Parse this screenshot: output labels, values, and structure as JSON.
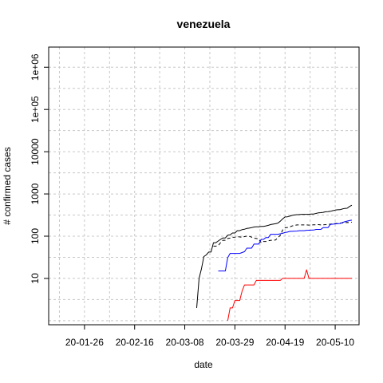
{
  "chart_data": {
    "type": "line",
    "title": "venezuela",
    "xlabel": "date",
    "ylabel": "# confirmed cases",
    "x_scale": "date",
    "x_range": [
      "2020-01-11",
      "2020-05-20"
    ],
    "x_ticks": [
      {
        "date": "2020-01-26",
        "label": "20-01-26"
      },
      {
        "date": "2020-02-16",
        "label": "20-02-16"
      },
      {
        "date": "2020-03-08",
        "label": "20-03-08"
      },
      {
        "date": "2020-03-29",
        "label": "20-03-29"
      },
      {
        "date": "2020-04-19",
        "label": "20-04-19"
      },
      {
        "date": "2020-05-10",
        "label": "20-05-10"
      }
    ],
    "y_scale": "log",
    "y_range": [
      0.8,
      3000000
    ],
    "y_ticks": [
      {
        "value": 10,
        "label": "10"
      },
      {
        "value": 100,
        "label": "100"
      },
      {
        "value": 1000,
        "label": "1000"
      },
      {
        "value": 10000,
        "label": "10000"
      },
      {
        "value": 100000,
        "label": "1e+05"
      },
      {
        "value": 1000000,
        "label": "1e+06"
      }
    ],
    "grid": true,
    "series": [
      {
        "color": "#000000",
        "dash": "solid",
        "points": [
          [
            "2020-03-13",
            2
          ],
          [
            "2020-03-14",
            10
          ],
          [
            "2020-03-15",
            17
          ],
          [
            "2020-03-16",
            33
          ],
          [
            "2020-03-17",
            36
          ],
          [
            "2020-03-18",
            42
          ],
          [
            "2020-03-19",
            42
          ],
          [
            "2020-03-20",
            70
          ],
          [
            "2020-03-21",
            70
          ],
          [
            "2020-03-22",
            77
          ],
          [
            "2020-03-23",
            84
          ],
          [
            "2020-03-24",
            91
          ],
          [
            "2020-03-25",
            91
          ],
          [
            "2020-03-26",
            106
          ],
          [
            "2020-03-27",
            107
          ],
          [
            "2020-03-28",
            119
          ],
          [
            "2020-03-29",
            119
          ],
          [
            "2020-03-30",
            135
          ],
          [
            "2020-03-31",
            135
          ],
          [
            "2020-04-01",
            143
          ],
          [
            "2020-04-02",
            146
          ],
          [
            "2020-04-03",
            153
          ],
          [
            "2020-04-04",
            155
          ],
          [
            "2020-04-05",
            159
          ],
          [
            "2020-04-06",
            165
          ],
          [
            "2020-04-07",
            167
          ],
          [
            "2020-04-08",
            167
          ],
          [
            "2020-04-09",
            171
          ],
          [
            "2020-04-10",
            171
          ],
          [
            "2020-04-11",
            175
          ],
          [
            "2020-04-12",
            181
          ],
          [
            "2020-04-13",
            189
          ],
          [
            "2020-04-14",
            193
          ],
          [
            "2020-04-15",
            197
          ],
          [
            "2020-04-16",
            204
          ],
          [
            "2020-04-17",
            227
          ],
          [
            "2020-04-18",
            256
          ],
          [
            "2020-04-19",
            285
          ],
          [
            "2020-04-20",
            288
          ],
          [
            "2020-04-21",
            298
          ],
          [
            "2020-04-22",
            311
          ],
          [
            "2020-04-23",
            318
          ],
          [
            "2020-04-24",
            324
          ],
          [
            "2020-04-25",
            325
          ],
          [
            "2020-04-26",
            329
          ],
          [
            "2020-04-27",
            329
          ],
          [
            "2020-04-28",
            329
          ],
          [
            "2020-04-29",
            331
          ],
          [
            "2020-04-30",
            333
          ],
          [
            "2020-05-01",
            335
          ],
          [
            "2020-05-02",
            345
          ],
          [
            "2020-05-03",
            357
          ],
          [
            "2020-05-04",
            361
          ],
          [
            "2020-05-05",
            367
          ],
          [
            "2020-05-06",
            379
          ],
          [
            "2020-05-07",
            381
          ],
          [
            "2020-05-08",
            388
          ],
          [
            "2020-05-09",
            402
          ],
          [
            "2020-05-10",
            414
          ],
          [
            "2020-05-11",
            422
          ],
          [
            "2020-05-12",
            423
          ],
          [
            "2020-05-13",
            440
          ],
          [
            "2020-05-14",
            455
          ],
          [
            "2020-05-15",
            459
          ],
          [
            "2020-05-16",
            504
          ],
          [
            "2020-05-17",
            541
          ]
        ]
      },
      {
        "color": "#000000",
        "dash": "dashed",
        "points": [
          [
            "2020-03-20",
            58
          ],
          [
            "2020-03-21",
            58
          ],
          [
            "2020-03-22",
            60
          ],
          [
            "2020-03-23",
            70
          ],
          [
            "2020-03-24",
            80
          ],
          [
            "2020-03-25",
            80
          ],
          [
            "2020-03-26",
            88
          ],
          [
            "2020-03-27",
            90
          ],
          [
            "2020-03-28",
            94
          ],
          [
            "2020-03-29",
            95
          ],
          [
            "2020-03-30",
            97
          ],
          [
            "2020-03-31",
            96
          ],
          [
            "2020-04-01",
            94
          ],
          [
            "2020-04-02",
            98
          ],
          [
            "2020-04-03",
            100
          ],
          [
            "2020-04-04",
            99
          ],
          [
            "2020-04-05",
            95
          ],
          [
            "2020-04-06",
            90
          ],
          [
            "2020-04-07",
            88
          ],
          [
            "2020-04-08",
            85
          ],
          [
            "2020-04-09",
            70
          ],
          [
            "2020-04-10",
            75
          ],
          [
            "2020-04-11",
            75
          ],
          [
            "2020-04-12",
            78
          ],
          [
            "2020-04-13",
            80
          ],
          [
            "2020-04-14",
            80
          ],
          [
            "2020-04-15",
            81
          ],
          [
            "2020-04-16",
            92
          ],
          [
            "2020-04-17",
            105
          ],
          [
            "2020-04-18",
            140
          ],
          [
            "2020-04-19",
            158
          ],
          [
            "2020-04-20",
            161
          ],
          [
            "2020-04-21",
            165
          ],
          [
            "2020-04-22",
            175
          ],
          [
            "2020-04-23",
            180
          ],
          [
            "2020-04-24",
            185
          ],
          [
            "2020-04-25",
            185
          ],
          [
            "2020-04-26",
            185
          ],
          [
            "2020-04-27",
            185
          ],
          [
            "2020-04-28",
            185
          ],
          [
            "2020-04-29",
            183
          ],
          [
            "2020-04-30",
            184
          ],
          [
            "2020-05-01",
            186
          ],
          [
            "2020-05-02",
            186
          ],
          [
            "2020-05-03",
            188
          ],
          [
            "2020-05-04",
            185
          ],
          [
            "2020-05-05",
            186
          ],
          [
            "2020-05-06",
            188
          ],
          [
            "2020-05-07",
            190
          ],
          [
            "2020-05-08",
            193
          ],
          [
            "2020-05-09",
            195
          ],
          [
            "2020-05-10",
            200
          ],
          [
            "2020-05-11",
            200
          ],
          [
            "2020-05-12",
            205
          ],
          [
            "2020-05-13",
            205
          ],
          [
            "2020-05-14",
            210
          ],
          [
            "2020-05-15",
            212
          ],
          [
            "2020-05-16",
            210
          ],
          [
            "2020-05-17",
            215
          ]
        ]
      },
      {
        "color": "#0000ff",
        "dash": "solid",
        "points": [
          [
            "2020-03-22",
            15
          ],
          [
            "2020-03-25",
            15
          ],
          [
            "2020-03-26",
            31
          ],
          [
            "2020-03-27",
            39
          ],
          [
            "2020-03-31",
            39
          ],
          [
            "2020-04-01",
            41
          ],
          [
            "2020-04-02",
            43
          ],
          [
            "2020-04-03",
            52
          ],
          [
            "2020-04-05",
            52
          ],
          [
            "2020-04-06",
            65
          ],
          [
            "2020-04-08",
            65
          ],
          [
            "2020-04-09",
            84
          ],
          [
            "2020-04-10",
            84
          ],
          [
            "2020-04-11",
            93
          ],
          [
            "2020-04-12",
            93
          ],
          [
            "2020-04-13",
            111
          ],
          [
            "2020-04-16",
            111
          ],
          [
            "2020-04-17",
            114
          ],
          [
            "2020-04-18",
            117
          ],
          [
            "2020-04-19",
            122
          ],
          [
            "2020-04-20",
            125
          ],
          [
            "2020-04-21",
            130
          ],
          [
            "2020-04-24",
            132
          ],
          [
            "2020-04-25",
            135
          ],
          [
            "2020-04-27",
            135
          ],
          [
            "2020-04-28",
            138
          ],
          [
            "2020-05-01",
            140
          ],
          [
            "2020-05-02",
            145
          ],
          [
            "2020-05-04",
            145
          ],
          [
            "2020-05-05",
            160
          ],
          [
            "2020-05-07",
            160
          ],
          [
            "2020-05-08",
            190
          ],
          [
            "2020-05-10",
            195
          ],
          [
            "2020-05-12",
            200
          ],
          [
            "2020-05-14",
            220
          ],
          [
            "2020-05-16",
            235
          ],
          [
            "2020-05-17",
            240
          ]
        ]
      },
      {
        "color": "#ff0000",
        "dash": "solid",
        "points": [
          [
            "2020-03-26",
            1
          ],
          [
            "2020-03-27",
            2
          ],
          [
            "2020-03-28",
            2
          ],
          [
            "2020-03-29",
            3
          ],
          [
            "2020-03-31",
            3
          ],
          [
            "2020-04-01",
            5
          ],
          [
            "2020-04-02",
            7
          ],
          [
            "2020-04-06",
            7
          ],
          [
            "2020-04-07",
            9
          ],
          [
            "2020-04-17",
            9
          ],
          [
            "2020-04-18",
            10
          ],
          [
            "2020-04-27",
            10
          ],
          [
            "2020-04-28",
            16
          ],
          [
            "2020-04-29",
            10
          ],
          [
            "2020-05-17",
            10
          ]
        ]
      }
    ]
  }
}
